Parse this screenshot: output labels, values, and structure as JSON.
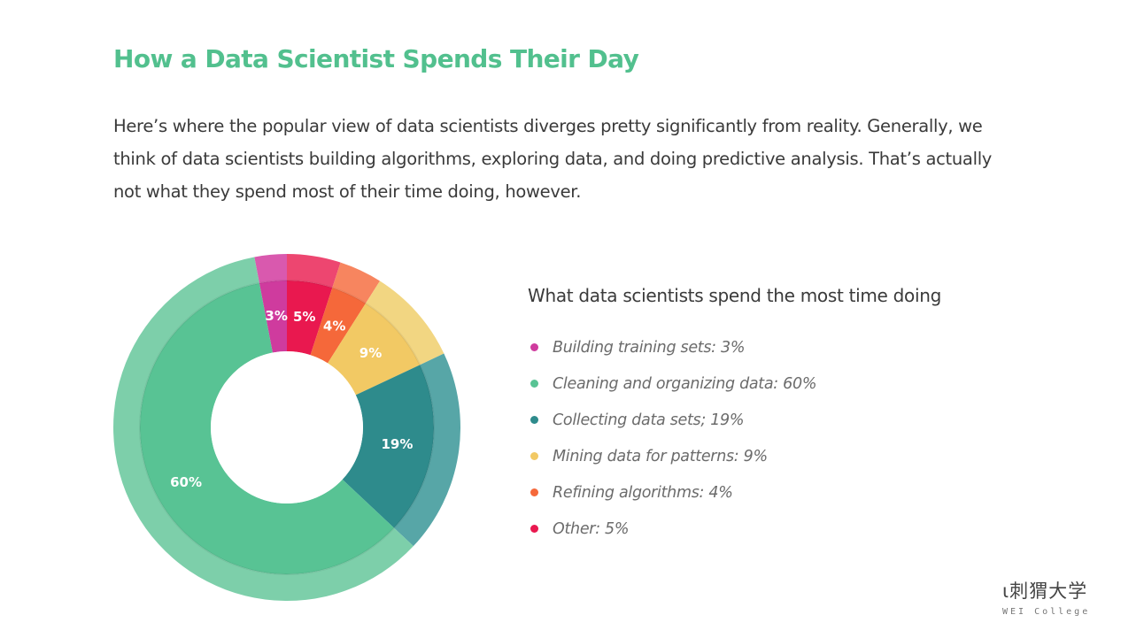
{
  "page": {
    "title": "How a Data Scientist Spends Their Day",
    "intro": "Here’s where the popular view of data scientists diverges pretty significantly from reality. Generally, we think of data scientists building algorithms, exploring data, and doing predictive analysis. That’s actually not what they spend most of their time doing, however."
  },
  "logo": {
    "cn": "ι刺猬大学",
    "en": "WEI College"
  },
  "chart_data": {
    "type": "pie",
    "title": "What data scientists spend the most time doing",
    "slices": [
      {
        "label": "Building training sets",
        "value": 3,
        "display": "3%",
        "legend": "Building training sets: 3%",
        "color": "#cf3b9e",
        "outer_color": "#d959ae"
      },
      {
        "label": "Other",
        "value": 5,
        "display": "5%",
        "legend": "Other: 5%",
        "color": "#e9184f",
        "outer_color": "#ed4670"
      },
      {
        "label": "Refining algorithms",
        "value": 4,
        "display": "4%",
        "legend": "Refining algorithms: 4%",
        "color": "#f5683a",
        "outer_color": "#f7855f"
      },
      {
        "label": "Mining data for patterns",
        "value": 9,
        "display": "9%",
        "legend": "Mining data for patterns: 9%",
        "color": "#f2c964",
        "outer_color": "#f2d682"
      },
      {
        "label": "Collecting data sets",
        "value": 19,
        "display": "19%",
        "legend": "Collecting data sets; 19%",
        "color": "#2e8b8c",
        "outer_color": "#57a6a7"
      },
      {
        "label": "Cleaning and organizing data",
        "value": 60,
        "display": "60%",
        "legend": "Cleaning and organizing data: 60%",
        "color": "#58c394",
        "outer_color": "#7dcfaa"
      }
    ],
    "legend_order": [
      "Building training sets",
      "Cleaning and organizing data",
      "Collecting data sets",
      "Mining data for patterns",
      "Refining algorithms",
      "Other"
    ]
  }
}
